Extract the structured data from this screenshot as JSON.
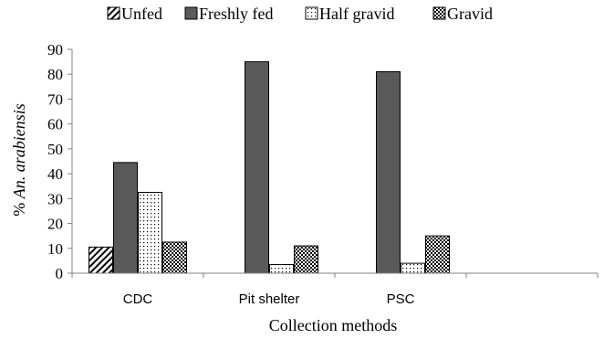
{
  "chart_data": {
    "type": "bar",
    "categories": [
      "CDC",
      "Pit shelter",
      "PSC",
      ""
    ],
    "series": [
      {
        "name": "Unfed",
        "values": [
          10.5,
          0,
          0,
          null
        ],
        "pattern": "hatch"
      },
      {
        "name": "Freshly fed",
        "values": [
          44.5,
          85,
          81,
          null
        ],
        "pattern": "solid",
        "color": "#595959"
      },
      {
        "name": "Half gravid",
        "values": [
          32.5,
          3.5,
          4,
          null
        ],
        "pattern": "dots"
      },
      {
        "name": "Gravid",
        "values": [
          12.5,
          11,
          15,
          null
        ],
        "pattern": "checker"
      }
    ],
    "xlabel": "Collection methods",
    "ylabel_prefix": "% ",
    "ylabel_italic": "An. arabiensis",
    "ylim": [
      0,
      90
    ],
    "yticks": [
      "0",
      "10",
      "20",
      "30",
      "40",
      "50",
      "60",
      "70",
      "80",
      "90"
    ],
    "legend_position": "top",
    "grid": false
  }
}
